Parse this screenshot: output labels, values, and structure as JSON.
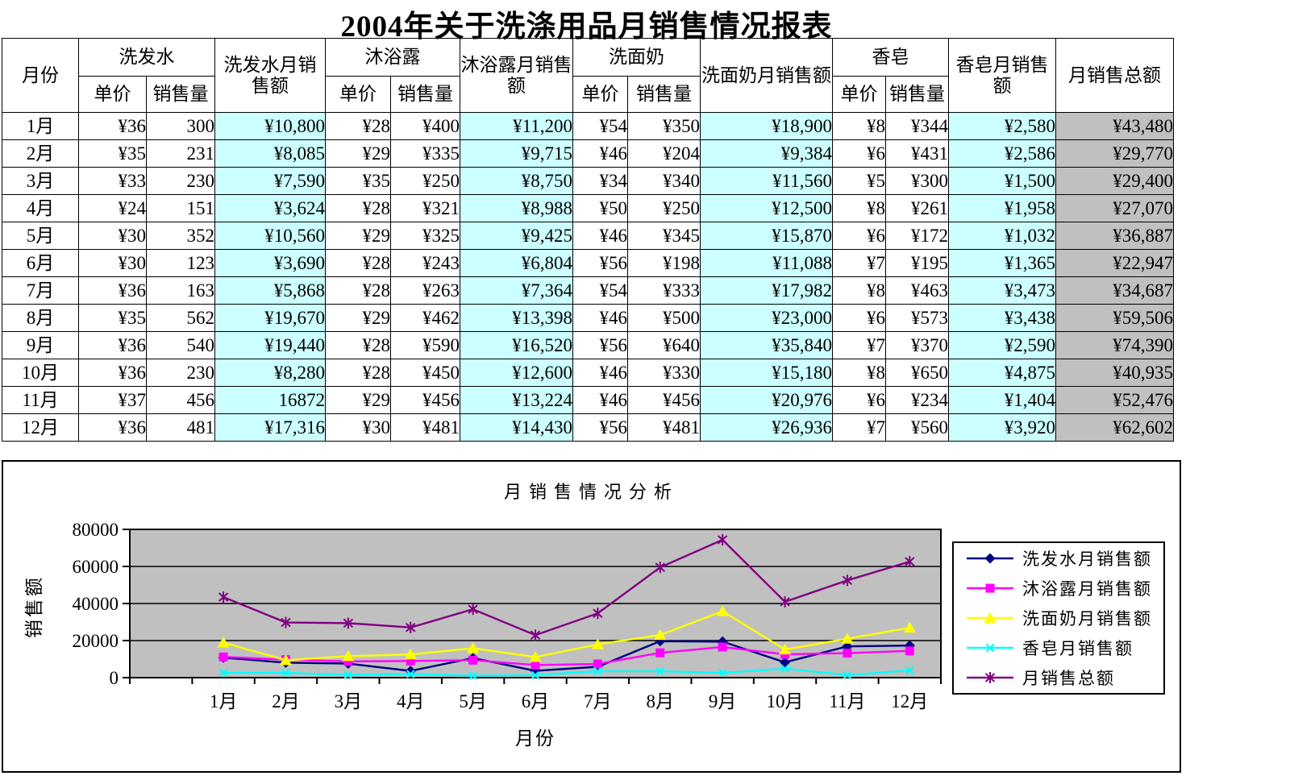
{
  "page": {
    "title": "2004年关于洗涤用品月销售情况报表"
  },
  "colors": {
    "amount_bg": "#CCFFFF",
    "total_bg": "#C0C0C0",
    "plot_bg": "#C0C0C0"
  },
  "table": {
    "month_header": "月份",
    "sub_price": "单价",
    "sub_qty": "销售量",
    "groups": [
      {
        "name": "洗发水",
        "amount": "洗发水月销售额"
      },
      {
        "name": "沐浴露",
        "amount": "沐浴露月销售额"
      },
      {
        "name": "洗面奶",
        "amount": "洗面奶月销售额"
      },
      {
        "name": "香皂",
        "amount": "香皂月销售额"
      }
    ],
    "total_header": "月销售总额",
    "rows": [
      {
        "month": "1月",
        "cells": [
          "¥36",
          "300",
          "¥10,800",
          "¥28",
          "¥400",
          "¥11,200",
          "¥54",
          "¥350",
          "¥18,900",
          "¥8",
          "¥344",
          "¥2,580",
          "¥43,480"
        ]
      },
      {
        "month": "2月",
        "cells": [
          "¥35",
          "231",
          "¥8,085",
          "¥29",
          "¥335",
          "¥9,715",
          "¥46",
          "¥204",
          "¥9,384",
          "¥6",
          "¥431",
          "¥2,586",
          "¥29,770"
        ]
      },
      {
        "month": "3月",
        "cells": [
          "¥33",
          "230",
          "¥7,590",
          "¥35",
          "¥250",
          "¥8,750",
          "¥34",
          "¥340",
          "¥11,560",
          "¥5",
          "¥300",
          "¥1,500",
          "¥29,400"
        ]
      },
      {
        "month": "4月",
        "cells": [
          "¥24",
          "151",
          "¥3,624",
          "¥28",
          "¥321",
          "¥8,988",
          "¥50",
          "¥250",
          "¥12,500",
          "¥8",
          "¥261",
          "¥1,958",
          "¥27,070"
        ]
      },
      {
        "month": "5月",
        "cells": [
          "¥30",
          "352",
          "¥10,560",
          "¥29",
          "¥325",
          "¥9,425",
          "¥46",
          "¥345",
          "¥15,870",
          "¥6",
          "¥172",
          "¥1,032",
          "¥36,887"
        ]
      },
      {
        "month": "6月",
        "cells": [
          "¥30",
          "123",
          "¥3,690",
          "¥28",
          "¥243",
          "¥6,804",
          "¥56",
          "¥198",
          "¥11,088",
          "¥7",
          "¥195",
          "¥1,365",
          "¥22,947"
        ]
      },
      {
        "month": "7月",
        "cells": [
          "¥36",
          "163",
          "¥5,868",
          "¥28",
          "¥263",
          "¥7,364",
          "¥54",
          "¥333",
          "¥17,982",
          "¥8",
          "¥463",
          "¥3,473",
          "¥34,687"
        ]
      },
      {
        "month": "8月",
        "cells": [
          "¥35",
          "562",
          "¥19,670",
          "¥29",
          "¥462",
          "¥13,398",
          "¥46",
          "¥500",
          "¥23,000",
          "¥6",
          "¥573",
          "¥3,438",
          "¥59,506"
        ]
      },
      {
        "month": "9月",
        "cells": [
          "¥36",
          "540",
          "¥19,440",
          "¥28",
          "¥590",
          "¥16,520",
          "¥56",
          "¥640",
          "¥35,840",
          "¥7",
          "¥370",
          "¥2,590",
          "¥74,390"
        ]
      },
      {
        "month": "10月",
        "cells": [
          "¥36",
          "230",
          "¥8,280",
          "¥28",
          "¥450",
          "¥12,600",
          "¥46",
          "¥330",
          "¥15,180",
          "¥8",
          "¥650",
          "¥4,875",
          "¥40,935"
        ]
      },
      {
        "month": "11月",
        "cells": [
          "¥37",
          "456",
          "16872",
          "¥29",
          "¥456",
          "¥13,224",
          "¥46",
          "¥456",
          "¥20,976",
          "¥6",
          "¥234",
          "¥1,404",
          "¥52,476"
        ]
      },
      {
        "month": "12月",
        "cells": [
          "¥36",
          "481",
          "¥17,316",
          "¥30",
          "¥481",
          "¥14,430",
          "¥56",
          "¥481",
          "¥26,936",
          "¥7",
          "¥560",
          "¥3,920",
          "¥62,602"
        ]
      }
    ]
  },
  "chart_data": {
    "type": "line",
    "title": "月销售情况分析",
    "xlabel": "月份",
    "ylabel": "销售额",
    "ylim": [
      0,
      80000
    ],
    "ytick_step": 20000,
    "grid": true,
    "legend_position": "right",
    "plot_bg": "#C0C0C0",
    "categories": [
      "1月",
      "2月",
      "3月",
      "4月",
      "5月",
      "6月",
      "7月",
      "8月",
      "9月",
      "10月",
      "11月",
      "12月"
    ],
    "series": [
      {
        "name": "洗发水月销售额",
        "color": "#000080",
        "marker": "diamond",
        "values": [
          10800,
          8085,
          7590,
          3624,
          10560,
          3690,
          5868,
          19670,
          19440,
          8280,
          16872,
          17316
        ]
      },
      {
        "name": "沐浴露月销售额",
        "color": "#FF00FF",
        "marker": "square",
        "values": [
          11200,
          9715,
          8750,
          8988,
          9425,
          6804,
          7364,
          13398,
          16520,
          12600,
          13224,
          14430
        ]
      },
      {
        "name": "洗面奶月销售额",
        "color": "#FFFF00",
        "marker": "triangle",
        "values": [
          18900,
          9384,
          11560,
          12500,
          15870,
          11088,
          17982,
          23000,
          35840,
          15180,
          20976,
          26936
        ]
      },
      {
        "name": "香皂月销售额",
        "color": "#00FFFF",
        "marker": "x",
        "values": [
          2580,
          2586,
          1500,
          1958,
          1032,
          1365,
          3473,
          3438,
          2590,
          4875,
          1404,
          3920
        ]
      },
      {
        "name": "月销售总额",
        "color": "#800080",
        "marker": "star",
        "values": [
          43480,
          29770,
          29400,
          27070,
          36887,
          22947,
          34687,
          59506,
          74390,
          40935,
          52476,
          62602
        ]
      }
    ]
  }
}
